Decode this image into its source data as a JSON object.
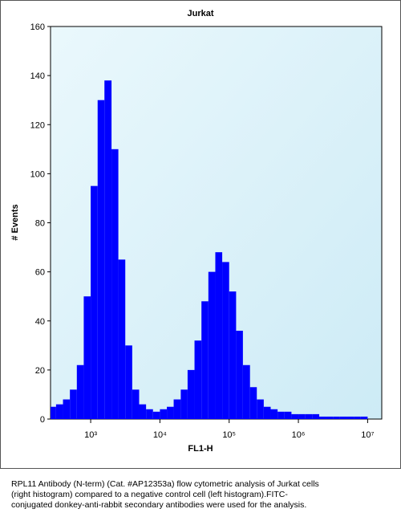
{
  "chart_data": {
    "type": "histogram",
    "title": "Jurkat",
    "xlabel": "FL1-H",
    "ylabel": "# Events",
    "xscale": "log",
    "color": "#0000ff",
    "bins": [
      251,
      316,
      398,
      501,
      631,
      794,
      1000,
      1260,
      1580,
      2000,
      2510,
      3160,
      3980,
      5010,
      6310,
      7940,
      10000,
      12600,
      15800,
      20000,
      25100,
      31600,
      39800,
      50100,
      63100,
      79400,
      100000,
      126000,
      158000,
      200000,
      251000,
      316000,
      398000,
      501000,
      631000,
      794000,
      1000000,
      1260000,
      1580000,
      2000000,
      2510000,
      3160000,
      3980000,
      5010000,
      6310000,
      7940000,
      10000000,
      12600000,
      15800000
    ],
    "values": [
      5,
      6,
      8,
      12,
      22,
      50,
      95,
      130,
      138,
      110,
      65,
      30,
      12,
      6,
      4,
      3,
      4,
      5,
      8,
      12,
      20,
      32,
      48,
      60,
      68,
      64,
      52,
      36,
      22,
      13,
      8,
      5,
      4,
      3,
      3,
      2,
      2,
      2,
      2,
      1,
      1,
      1,
      1,
      1,
      1,
      1,
      0,
      0
    ],
    "xlim": [
      263,
      16000000
    ],
    "xticks": [
      {
        "value": 1000,
        "label": "10³"
      },
      {
        "value": 10000,
        "label": "10⁴"
      },
      {
        "value": 100000,
        "label": "10⁵"
      },
      {
        "value": 1000000,
        "label": "10⁶"
      },
      {
        "value": 10000000,
        "label": "10⁷"
      }
    ],
    "ylim": [
      0,
      160
    ],
    "yticks": [
      0,
      20,
      40,
      60,
      80,
      100,
      120,
      140,
      160
    ]
  },
  "caption": [
    "RPL11 Antibody (N-term) (Cat. #AP12353a) flow cytometric analysis of Jurkat cells",
    "(right histogram) compared to a negative control cell (left histogram).FITC-",
    "conjugated donkey-anti-rabbit secondary antibodies were used for the analysis."
  ]
}
